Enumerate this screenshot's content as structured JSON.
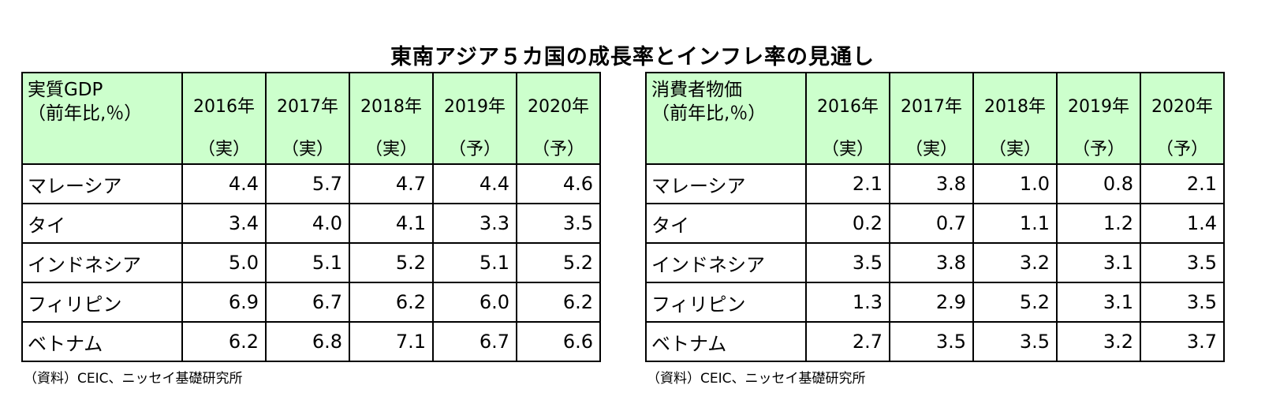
{
  "title": "東南アジア５カ国の成長率とインフレ率の見通し",
  "years": [
    "2016年",
    "2017年",
    "2018年",
    "2019年",
    "2020年"
  ],
  "statuses": [
    "（実）",
    "（実）",
    "（実）",
    "（予）",
    "（予）"
  ],
  "gdp": {
    "header_line1": "実質GDP",
    "header_line2": "（前年比,％）",
    "rows": [
      {
        "country": "マレーシア",
        "values": [
          "4.4",
          "5.7",
          "4.7",
          "4.4",
          "4.6"
        ]
      },
      {
        "country": "タイ",
        "values": [
          "3.4",
          "4.0",
          "4.1",
          "3.3",
          "3.5"
        ]
      },
      {
        "country": "インドネシア",
        "values": [
          "5.0",
          "5.1",
          "5.2",
          "5.1",
          "5.2"
        ]
      },
      {
        "country": "フィリピン",
        "values": [
          "6.9",
          "6.7",
          "6.2",
          "6.0",
          "6.2"
        ]
      },
      {
        "country": "ベトナム",
        "values": [
          "6.2",
          "6.8",
          "7.1",
          "6.7",
          "6.6"
        ]
      }
    ],
    "source": "（資料）CEIC、ニッセイ基礎研究所"
  },
  "cpi": {
    "header_line1": "消費者物価",
    "header_line2": "（前年比,％）",
    "rows": [
      {
        "country": "マレーシア",
        "values": [
          "2.1",
          "3.8",
          "1.0",
          "0.8",
          "2.1"
        ]
      },
      {
        "country": "タイ",
        "values": [
          "0.2",
          "0.7",
          "1.1",
          "1.2",
          "1.4"
        ]
      },
      {
        "country": "インドネシア",
        "values": [
          "3.5",
          "3.8",
          "3.2",
          "3.1",
          "3.5"
        ]
      },
      {
        "country": "フィリピン",
        "values": [
          "1.3",
          "2.9",
          "5.2",
          "3.1",
          "3.5"
        ]
      },
      {
        "country": "ベトナム",
        "values": [
          "2.7",
          "3.5",
          "3.5",
          "3.2",
          "3.7"
        ]
      }
    ],
    "source": "（資料）CEIC、ニッセイ基礎研究所"
  }
}
